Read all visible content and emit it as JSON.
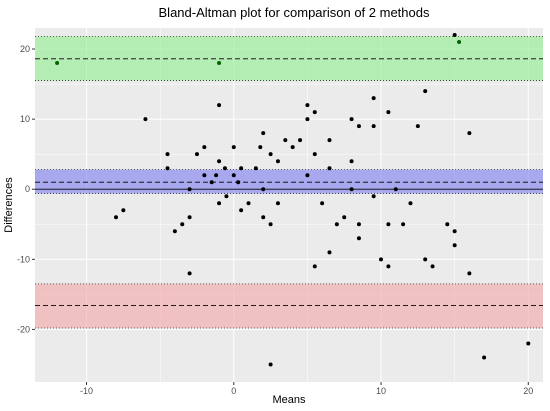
{
  "chart_data": {
    "type": "scatter",
    "title": "Bland-Altman plot for comparison of 2 methods",
    "xlabel": "Means",
    "ylabel": "Differences",
    "xlim": [
      -13.5,
      21
    ],
    "ylim": [
      -27.5,
      23
    ],
    "x_ticks": [
      -10,
      0,
      10,
      20
    ],
    "y_ticks": [
      -20,
      -10,
      0,
      10,
      20
    ],
    "grid": true,
    "colors": {
      "panel_background": "#ebebeb",
      "grid": "#ffffff",
      "upper_band": "#90ee90",
      "mean_band": "#7b7bf0",
      "lower_band": "#f4a5a5",
      "points": "#000000",
      "highlight_points": "#006400"
    },
    "bands": [
      {
        "name": "upper limit of agreement",
        "center": 18.6,
        "lower": 15.5,
        "upper": 21.8,
        "color": "#90ee90"
      },
      {
        "name": "mean difference",
        "center": 1.0,
        "lower": -0.6,
        "upper": 2.8,
        "color": "#7b7bf0"
      },
      {
        "name": "lower limit of agreement",
        "center": -16.6,
        "lower": -19.8,
        "upper": -13.5,
        "color": "#f4a5a5"
      }
    ],
    "zero_line": 0,
    "series": [
      {
        "points": [
          [
            -12,
            18
          ],
          [
            -1,
            18
          ],
          [
            15,
            22
          ],
          [
            15.3,
            21
          ],
          [
            -8,
            -4
          ],
          [
            -7.5,
            -3
          ],
          [
            -6,
            10
          ],
          [
            -4.5,
            5
          ],
          [
            -4.5,
            3
          ],
          [
            -4,
            -6
          ],
          [
            -3.5,
            -5
          ],
          [
            -3,
            -4
          ],
          [
            -3,
            0
          ],
          [
            -3,
            -12
          ],
          [
            -2.5,
            5
          ],
          [
            -2,
            2
          ],
          [
            -2,
            6
          ],
          [
            -1.5,
            1
          ],
          [
            -1.2,
            2
          ],
          [
            -1,
            4
          ],
          [
            -1,
            12
          ],
          [
            -1,
            -2
          ],
          [
            -0.6,
            3
          ],
          [
            -0.5,
            -1
          ],
          [
            0,
            2
          ],
          [
            0,
            6
          ],
          [
            0.3,
            1
          ],
          [
            0.5,
            3
          ],
          [
            0.5,
            -3
          ],
          [
            1,
            -2
          ],
          [
            1.5,
            3
          ],
          [
            1.8,
            6
          ],
          [
            2,
            8
          ],
          [
            2,
            0
          ],
          [
            2,
            -4
          ],
          [
            2.5,
            5
          ],
          [
            2.5,
            -5
          ],
          [
            3,
            4
          ],
          [
            3,
            -2
          ],
          [
            3.5,
            7
          ],
          [
            4,
            6
          ],
          [
            4.5,
            7
          ],
          [
            5,
            12
          ],
          [
            5,
            10
          ],
          [
            5,
            2
          ],
          [
            5.5,
            11
          ],
          [
            5.5,
            5
          ],
          [
            5.5,
            -11
          ],
          [
            6,
            -2
          ],
          [
            6.5,
            7
          ],
          [
            6.5,
            3
          ],
          [
            6.5,
            -9
          ],
          [
            7,
            -5
          ],
          [
            7.5,
            -4
          ],
          [
            8,
            10
          ],
          [
            8,
            4
          ],
          [
            8,
            0
          ],
          [
            8.5,
            9
          ],
          [
            8.5,
            -5
          ],
          [
            8.5,
            -7
          ],
          [
            9.5,
            13
          ],
          [
            9.5,
            9
          ],
          [
            9.5,
            -1
          ],
          [
            10,
            -10
          ],
          [
            10.5,
            11
          ],
          [
            10.5,
            -5
          ],
          [
            10.5,
            -11
          ],
          [
            11,
            0
          ],
          [
            11.5,
            -5
          ],
          [
            12,
            -2
          ],
          [
            12.5,
            9
          ],
          [
            13,
            14
          ],
          [
            13,
            -10
          ],
          [
            13.5,
            -11
          ],
          [
            14.5,
            -5
          ],
          [
            15,
            -6
          ],
          [
            15,
            -8
          ],
          [
            16,
            8
          ],
          [
            16,
            -12
          ],
          [
            17,
            -24
          ],
          [
            20,
            -22
          ],
          [
            2.5,
            -25
          ]
        ]
      }
    ],
    "highlight_points": [
      [
        -12,
        18
      ],
      [
        -1,
        18
      ],
      [
        15.3,
        21
      ]
    ]
  }
}
